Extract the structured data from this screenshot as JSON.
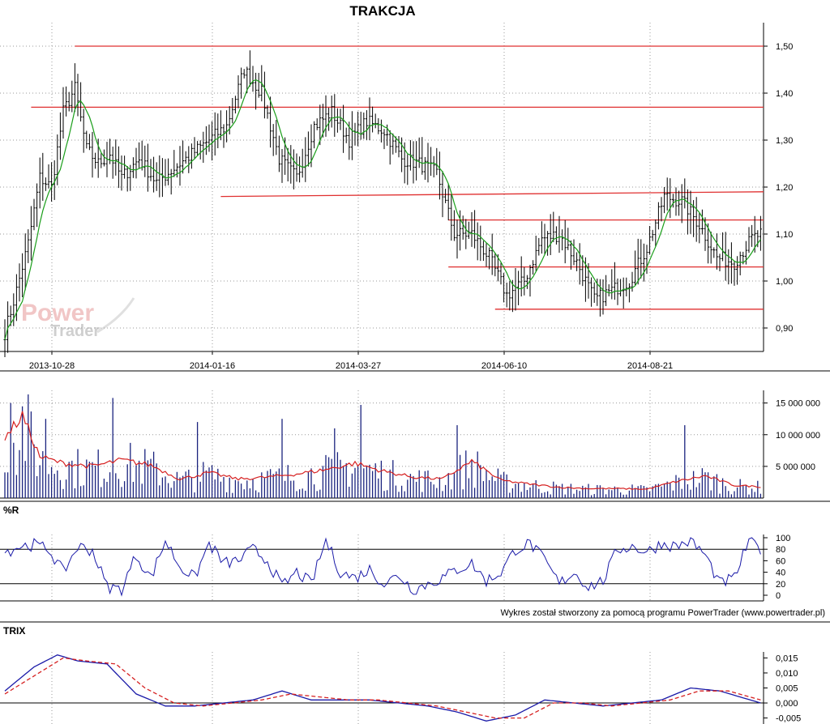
{
  "chart_data": [
    {
      "type": "ohlc",
      "title": "TRAKCJA",
      "ylim": [
        0.85,
        1.55
      ],
      "y_ticks": [
        "1,50",
        "1,40",
        "1,30",
        "1,20",
        "1,10",
        "1,00",
        "0,90"
      ],
      "y_tick_values": [
        1.5,
        1.4,
        1.3,
        1.2,
        1.1,
        1.0,
        0.9
      ],
      "x_ticks": [
        "2013-10-28",
        "2014-01-16",
        "2014-03-27",
        "2014-06-10",
        "2014-08-21"
      ],
      "x_tick_index": [
        5,
        60,
        110,
        160,
        210
      ],
      "n_sessions": 260,
      "grid": true,
      "price_anchors": {
        "index": [
          0,
          4,
          8,
          12,
          16,
          20,
          24,
          28,
          32,
          36,
          40,
          46,
          52,
          58,
          64,
          70,
          76,
          82,
          88,
          94,
          100,
          106,
          112,
          118,
          124,
          130,
          136,
          142,
          148,
          154,
          160,
          166,
          172,
          178,
          184,
          190,
          196,
          202,
          208,
          214,
          220,
          226,
          232,
          238,
          244,
          250,
          256,
          259
        ],
        "close": [
          0.89,
          0.98,
          1.08,
          1.22,
          1.2,
          1.36,
          1.41,
          1.28,
          1.25,
          1.27,
          1.22,
          1.26,
          1.21,
          1.24,
          1.27,
          1.3,
          1.33,
          1.45,
          1.4,
          1.26,
          1.22,
          1.33,
          1.36,
          1.3,
          1.34,
          1.32,
          1.26,
          1.25,
          1.23,
          1.1,
          1.1,
          1.05,
          0.97,
          1.0,
          1.09,
          1.1,
          1.04,
          0.96,
          0.98,
          1.0,
          1.07,
          1.18,
          1.17,
          1.12,
          1.05,
          1.04,
          1.09,
          1.1
        ]
      },
      "moving_average": {
        "name": "",
        "color": "#1a9e1a"
      },
      "horizontal_lines": [
        {
          "y": 1.5,
          "from_index": 24,
          "to_index": 262
        },
        {
          "y": 1.37,
          "from_index": 9,
          "to_index": 262
        },
        {
          "y1": 1.18,
          "y2": 1.19,
          "from_index": 74,
          "to_index": 262
        },
        {
          "y": 1.13,
          "from_index": 152,
          "to_index": 262
        },
        {
          "y": 1.03,
          "from_index": 152,
          "to_index": 262
        },
        {
          "y": 0.94,
          "from_index": 168,
          "to_index": 262
        }
      ],
      "watermark": [
        "Power",
        "Trader"
      ]
    },
    {
      "type": "bar",
      "y_ticks": [
        "15 000 000",
        "10 000 000",
        "5 000 000"
      ],
      "y_tick_values": [
        15000000,
        10000000,
        5000000
      ],
      "ylim": [
        0,
        17000000
      ],
      "volume_anchors": {
        "index": [
          0,
          6,
          12,
          20,
          30,
          40,
          50,
          60,
          70,
          80,
          90,
          100,
          110,
          120,
          130,
          140,
          150,
          160,
          170,
          180,
          190,
          200,
          210,
          220,
          230,
          240,
          250,
          259
        ],
        "avg": [
          9500000,
          13000000,
          6500000,
          5500000,
          5000000,
          6000000,
          5200000,
          3000000,
          4000000,
          3000000,
          3300000,
          3800000,
          4500000,
          5500000,
          4200000,
          3300000,
          3000000,
          5800000,
          2800000,
          2200000,
          1700000,
          1500000,
          1500000,
          1400000,
          2600000,
          3500000,
          2000000,
          1800000
        ]
      },
      "spikes": [
        [
          2,
          15000000
        ],
        [
          14,
          12500000
        ],
        [
          37,
          15800000
        ],
        [
          66,
          12000000
        ],
        [
          95,
          12500000
        ],
        [
          113,
          11000000
        ],
        [
          122,
          14700000
        ],
        [
          155,
          11500000
        ],
        [
          233,
          11500000
        ]
      ],
      "colors": {
        "bars": "#1a237e",
        "average": "#d62020"
      }
    },
    {
      "type": "line",
      "title": "%R",
      "y_ticks": [
        "100",
        "80",
        "60",
        "40",
        "20",
        "0"
      ],
      "y_tick_values": [
        100,
        80,
        60,
        40,
        20,
        0
      ],
      "ylim": [
        0,
        100
      ],
      "reference_lines": [
        80,
        20
      ],
      "wr_anchors": {
        "index": [
          0,
          5,
          10,
          15,
          20,
          25,
          30,
          35,
          40,
          45,
          50,
          55,
          60,
          65,
          70,
          75,
          80,
          85,
          90,
          95,
          100,
          105,
          110,
          115,
          120,
          125,
          130,
          135,
          140,
          145,
          150,
          155,
          160,
          165,
          170,
          175,
          180,
          185,
          190,
          195,
          200,
          205,
          210,
          215,
          220,
          225,
          230,
          235,
          240,
          245,
          250,
          255,
          259
        ],
        "value": [
          75,
          85,
          88,
          80,
          40,
          85,
          78,
          15,
          10,
          70,
          30,
          95,
          50,
          30,
          90,
          55,
          60,
          80,
          60,
          15,
          40,
          20,
          95,
          40,
          30,
          45,
          20,
          35,
          10,
          20,
          30,
          45,
          55,
          25,
          40,
          80,
          90,
          60,
          20,
          40,
          15,
          25,
          80,
          85,
          75,
          90,
          85,
          95,
          70,
          20,
          30,
          95,
          80
        ]
      },
      "color": "#1a1aa8",
      "credit": "Wykres został stworzony za pomocą programu PowerTrader (www.powertrader.pl)"
    },
    {
      "type": "line",
      "title": "TRIX",
      "y_ticks": [
        "0,015",
        "0,010",
        "0,005",
        "0,000",
        "-0,005"
      ],
      "y_tick_values": [
        0.015,
        0.01,
        0.005,
        0.0,
        -0.005
      ],
      "ylim": [
        -0.007,
        0.017
      ],
      "reference_lines": [
        0
      ],
      "series": [
        {
          "color": "#1a1aa8",
          "dash": "",
          "anchors": {
            "index": [
              0,
              10,
              18,
              25,
              35,
              45,
              55,
              65,
              75,
              85,
              95,
              105,
              115,
              125,
              135,
              145,
              155,
              165,
              175,
              185,
              195,
              205,
              215,
              225,
              235,
              245,
              259
            ],
            "value": [
              0.004,
              0.012,
              0.016,
              0.014,
              0.013,
              0.003,
              -0.001,
              -0.001,
              0.0,
              0.001,
              0.004,
              0.001,
              0.001,
              0.001,
              0.0,
              -0.001,
              -0.003,
              -0.006,
              -0.004,
              0.001,
              0.0,
              -0.001,
              0.0,
              0.001,
              0.005,
              0.004,
              0.0
            ]
          }
        },
        {
          "color": "#d62020",
          "dash": "5 3",
          "anchors": {
            "index": [
              0,
              10,
              20,
              28,
              38,
              48,
              58,
              68,
              78,
              88,
              98,
              108,
              118,
              128,
              138,
              148,
              158,
              168,
              178,
              188,
              198,
              208,
              218,
              228,
              238,
              248,
              259
            ],
            "value": [
              0.003,
              0.009,
              0.015,
              0.014,
              0.013,
              0.005,
              0.0,
              -0.001,
              0.0,
              0.001,
              0.003,
              0.002,
              0.001,
              0.001,
              0.0,
              -0.001,
              -0.003,
              -0.005,
              -0.005,
              0.0,
              0.0,
              -0.001,
              0.0,
              0.001,
              0.004,
              0.004,
              0.001
            ]
          }
        }
      ]
    }
  ]
}
